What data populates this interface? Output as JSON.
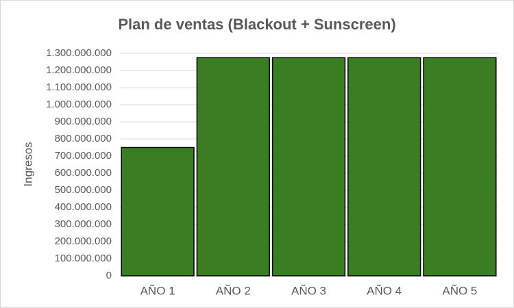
{
  "chart_data": {
    "type": "bar",
    "title": "Plan de ventas (Blackout + Sunscreen)",
    "y_label": "Ingresos",
    "categories": [
      "AÑO 1",
      "AÑO 2",
      "AÑO 3",
      "AÑO 4",
      "AÑO 5"
    ],
    "values": [
      750000000,
      1275000000,
      1275000000,
      1275000000,
      1275000000
    ],
    "color": "#3a7d22",
    "ylim": [
      0,
      1300000000
    ],
    "yticks": [
      0,
      {
        "value": 100000000,
        "label": "100.000.000"
      },
      {
        "value": 200000000,
        "label": "200.000.000"
      },
      {
        "value": 300000000,
        "label": "300.000.000"
      },
      {
        "value": 400000000,
        "label": "400.000.000"
      },
      {
        "value": 500000000,
        "label": "500.000.000"
      },
      {
        "value": 600000000,
        "label": "600.000.000"
      },
      {
        "value": 700000000,
        "label": "700.000.000"
      },
      {
        "value": 800000000,
        "label": "800.000.000"
      },
      {
        "value": 900000000,
        "label": "900.000.000"
      },
      {
        "value": 1000000000,
        "label": "1.000.000.000"
      },
      {
        "value": 1100000000,
        "label": "1.100.000.000"
      },
      {
        "value": 1200000000,
        "label": "1.200.000.000"
      },
      {
        "value": 1300000000,
        "label": "1.300.000.000"
      }
    ],
    "grid": true
  }
}
